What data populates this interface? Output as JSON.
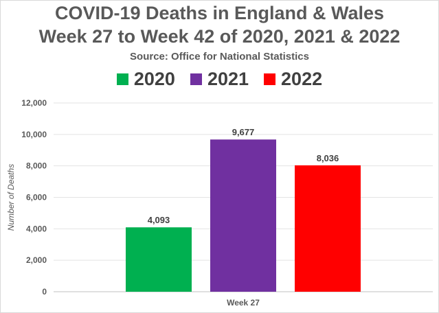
{
  "chart_data": {
    "type": "bar",
    "title": "COVID-19 Deaths in England & Wales",
    "subtitle": "Week 27 to Week 42 of 2020, 2021 & 2022",
    "source": "Source: Office for National Statistics",
    "categories": [
      "Week 27"
    ],
    "series": [
      {
        "name": "2020",
        "color": "#00b050",
        "values": [
          4093
        ],
        "labels": [
          "4,093"
        ]
      },
      {
        "name": "2021",
        "color": "#7030a0",
        "values": [
          9677
        ],
        "labels": [
          "9,677"
        ]
      },
      {
        "name": "2022",
        "color": "#ff0000",
        "values": [
          8036
        ],
        "labels": [
          "8,036"
        ]
      }
    ],
    "xlabel": "",
    "ylabel": "Number of Deaths",
    "ylim": [
      0,
      12000
    ],
    "yticks": [
      0,
      2000,
      4000,
      6000,
      8000,
      10000,
      12000
    ],
    "ytick_labels": [
      "0",
      "2,000",
      "4,000",
      "6,000",
      "8,000",
      "10,000",
      "12,000"
    ],
    "grid": true,
    "legend_position": "top"
  }
}
